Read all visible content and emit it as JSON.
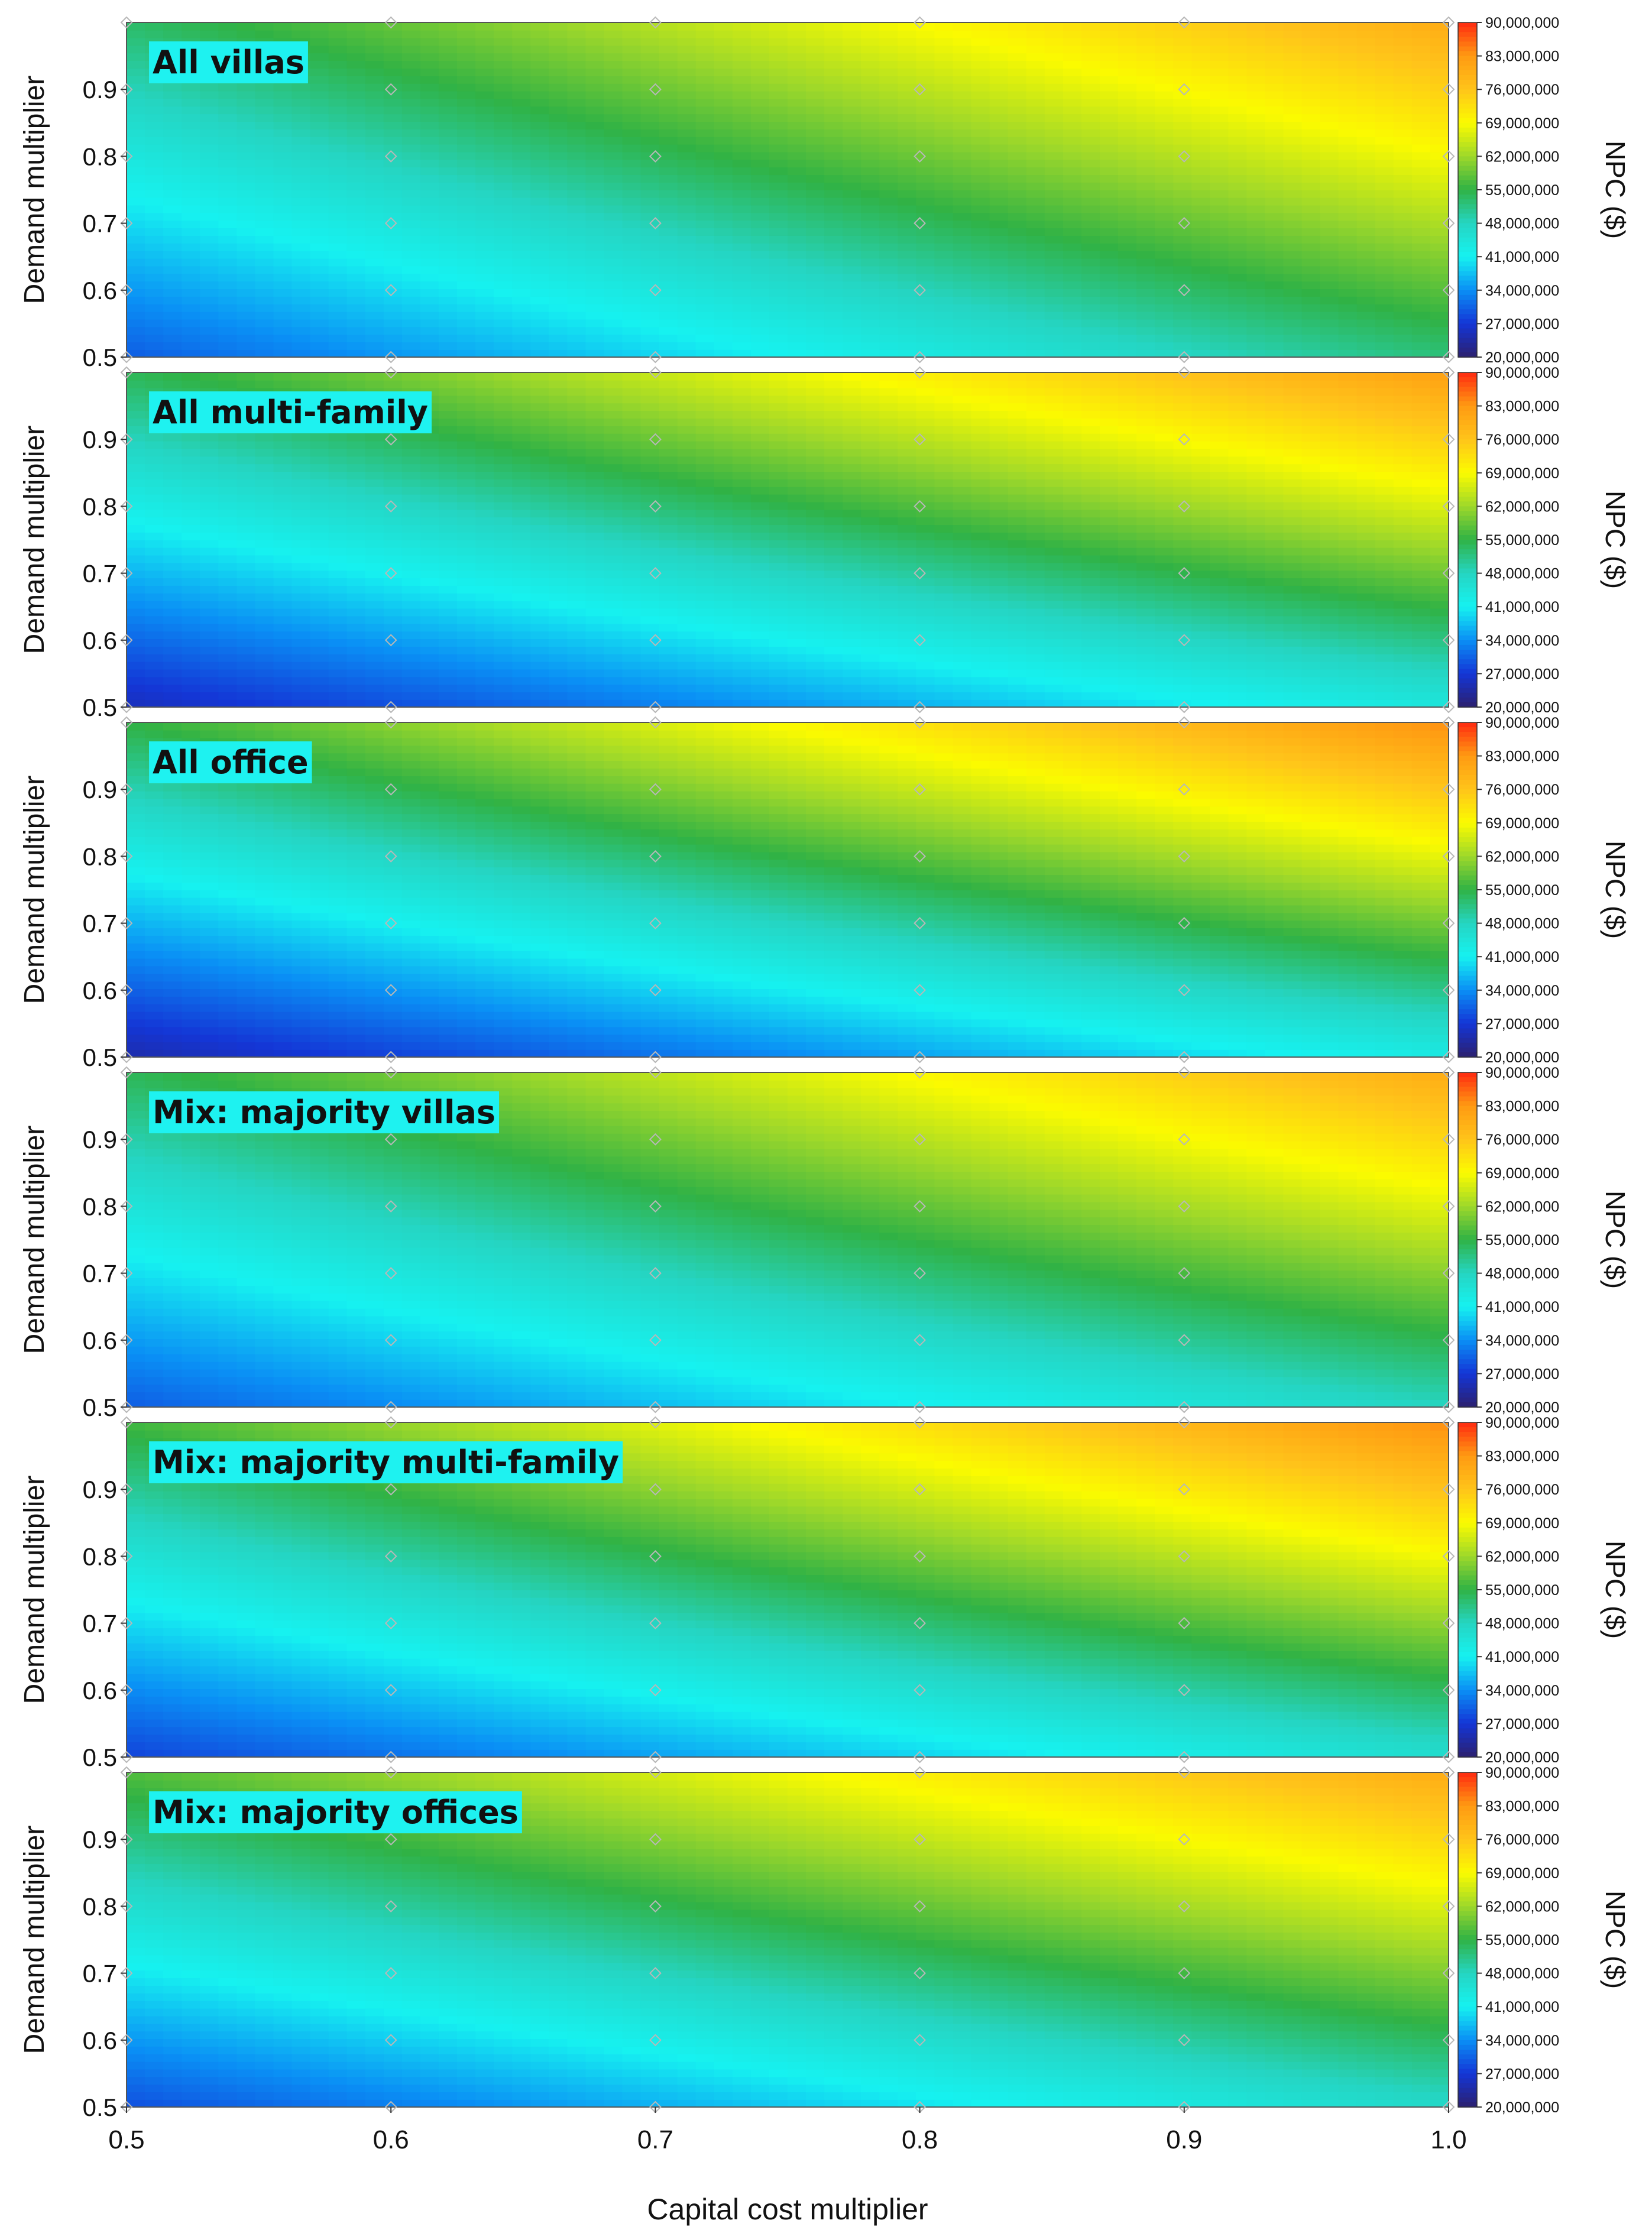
{
  "chart_data": {
    "type": "heatmap",
    "shared_x_axis": {
      "label": "Capital cost multiplier",
      "range": [
        0.5,
        1.0
      ],
      "ticks": [
        "0.5",
        "0.6",
        "0.7",
        "0.8",
        "0.9",
        "1.0"
      ]
    },
    "y_axis": {
      "label": "Demand multiplier",
      "range": [
        0.5,
        1.0
      ],
      "ticks": [
        "0.5",
        "0.6",
        "0.7",
        "0.8",
        "0.9"
      ]
    },
    "colorbar": {
      "label": "NPC ($)",
      "range": [
        20000000,
        90000000
      ],
      "ticks": [
        "90,000,000",
        "83,000,000",
        "76,000,000",
        "69,000,000",
        "62,000,000",
        "55,000,000",
        "48,000,000",
        "41,000,000",
        "34,000,000",
        "27,000,000",
        "20,000,000"
      ],
      "colormap": [
        "#2c2070",
        "#1436d6",
        "#0a8ff5",
        "#16f2f0",
        "#25d5c2",
        "#30b245",
        "#9ed82a",
        "#fbfb00",
        "#ffc41a",
        "#ff9a12",
        "#ff2a10"
      ]
    },
    "sample_points": {
      "x": [
        0.5,
        0.6,
        0.7,
        0.8,
        0.9,
        1.0
      ],
      "y": [
        0.5,
        0.6,
        0.7,
        0.8,
        0.9,
        1.0
      ],
      "marker_color": "#b8b8b8"
    },
    "panels": [
      {
        "title": "All villas",
        "npc_corners": {
          "x0.5_y0.5": 30000000,
          "x1.0_y0.5": 52000000,
          "x0.5_y1.0": 53000000,
          "x1.0_y1.0": 80000000
        }
      },
      {
        "title": "All multi-family",
        "npc_corners": {
          "x0.5_y0.5": 25000000,
          "x1.0_y0.5": 44000000,
          "x0.5_y1.0": 54000000,
          "x1.0_y1.0": 82000000
        }
      },
      {
        "title": "All office",
        "npc_corners": {
          "x0.5_y0.5": 24000000,
          "x1.0_y0.5": 43000000,
          "x0.5_y1.0": 55000000,
          "x1.0_y1.0": 84000000
        }
      },
      {
        "title": "Mix: majority villas",
        "npc_corners": {
          "x0.5_y0.5": 30000000,
          "x1.0_y0.5": 48000000,
          "x0.5_y1.0": 54000000,
          "x1.0_y1.0": 80000000
        }
      },
      {
        "title": "Mix: majority multi-family",
        "npc_corners": {
          "x0.5_y0.5": 28000000,
          "x1.0_y0.5": 46000000,
          "x0.5_y1.0": 56000000,
          "x1.0_y1.0": 84000000
        }
      },
      {
        "title": "Mix: majority offices",
        "npc_corners": {
          "x0.5_y0.5": 29000000,
          "x1.0_y0.5": 47000000,
          "x0.5_y1.0": 57000000,
          "x1.0_y1.0": 80000000
        }
      }
    ],
    "title_background": "#1ef2f0",
    "grid": false,
    "legend": "colorbar-right"
  }
}
